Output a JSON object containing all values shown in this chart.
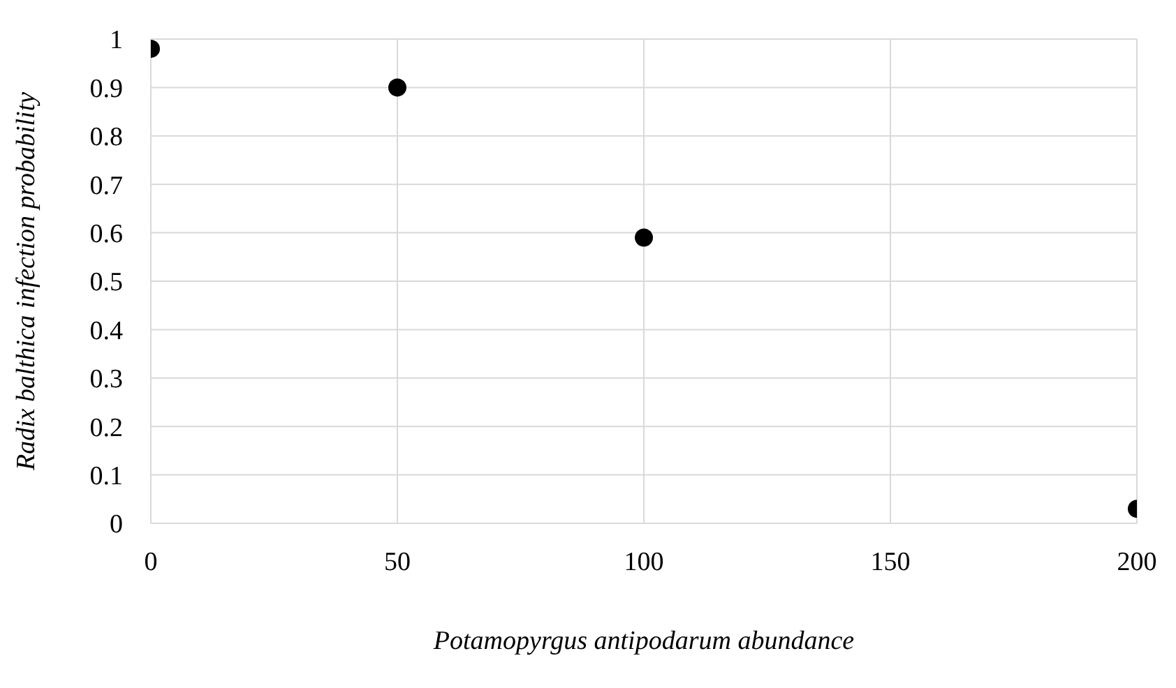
{
  "chart_data": {
    "type": "scatter",
    "xlabel": "Potamopyrgus antipodarum abundance",
    "ylabel": "Radix balthica infection probability",
    "x": [
      0,
      50,
      100,
      200
    ],
    "series": [
      {
        "color": "#000000",
        "values": [
          0.98,
          0.9,
          0.59,
          0.03
        ]
      }
    ],
    "xlim": [
      0,
      200
    ],
    "xticks": [
      0,
      50,
      100,
      150,
      200
    ],
    "ylim": [
      0,
      1
    ],
    "yticks": [
      0,
      0.1,
      0.2,
      0.3,
      0.4,
      0.5,
      0.6,
      0.7,
      0.8,
      0.9,
      1
    ],
    "grid": true,
    "marker": "circle",
    "legend": false
  }
}
